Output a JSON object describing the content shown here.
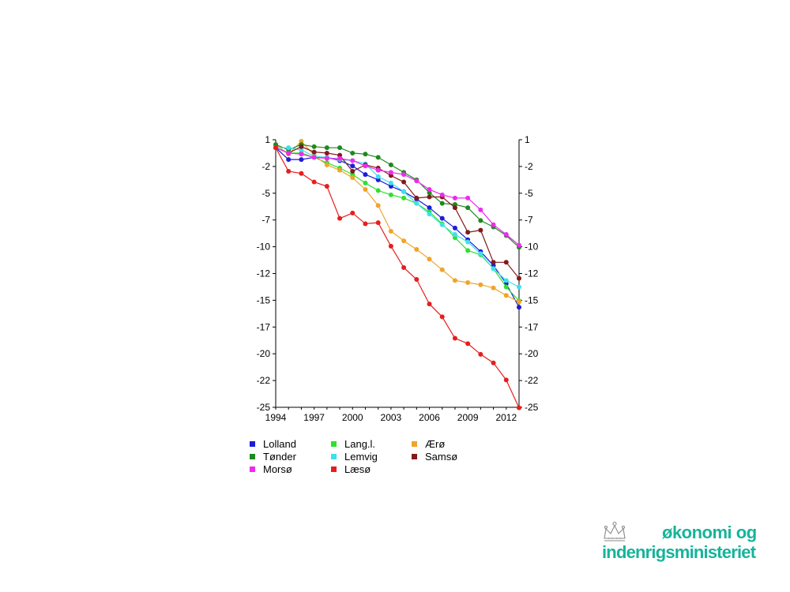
{
  "chart_data": {
    "type": "line",
    "title": "",
    "xlabel": "",
    "ylabel": "",
    "x": [
      1994,
      1995,
      1996,
      1997,
      1998,
      1999,
      2000,
      2001,
      2002,
      2003,
      2004,
      2005,
      2006,
      2007,
      2008,
      2009,
      2010,
      2011,
      2012,
      2013
    ],
    "x_ticks": [
      "1994",
      "1997",
      "2000",
      "2003",
      "2006",
      "2009",
      "2012"
    ],
    "y_ticks": [
      "1",
      "-2",
      "-5",
      "-7",
      "-10",
      "-12",
      "-15",
      "-17",
      "-20",
      "-22",
      "-25"
    ],
    "y_tick_values": [
      0.75,
      -1.75,
      -4.25,
      -6.75,
      -9.25,
      -11.75,
      -14.25,
      -16.75,
      -19.25,
      -21.75,
      -24.25
    ],
    "xlim": [
      1994,
      2013
    ],
    "ylim": [
      -24.25,
      0.75
    ],
    "grid": false,
    "legend_position": "bottom",
    "series": [
      {
        "name": "Lolland",
        "color": "#1c1cd9",
        "values": [
          0,
          -1.1,
          -1.1,
          -0.9,
          -0.9,
          -1.2,
          -1.7,
          -2.5,
          -3.0,
          -3.6,
          -4.1,
          -4.8,
          -5.6,
          -6.6,
          -7.5,
          -8.6,
          -9.7,
          -11.0,
          -12.7,
          -14.9
        ]
      },
      {
        "name": "Lang.l.",
        "color": "#2fe02f",
        "values": [
          0,
          -0.5,
          -0.5,
          -0.9,
          -1.4,
          -1.9,
          -2.5,
          -3.3,
          -4.0,
          -4.4,
          -4.7,
          -5.2,
          -6.0,
          -7.1,
          -8.4,
          -9.6,
          -10.0,
          -11.3,
          -13.0,
          -14.3
        ]
      },
      {
        "name": "Ærø",
        "color": "#f0a42a",
        "values": [
          0.3,
          -0.6,
          0.6,
          -0.7,
          -1.6,
          -2.1,
          -2.8,
          -3.9,
          -5.4,
          -7.8,
          -8.7,
          -9.5,
          -10.4,
          -11.4,
          -12.4,
          -12.6,
          -12.8,
          -13.1,
          -13.8,
          -14.4
        ]
      },
      {
        "name": "Tønder",
        "color": "#1e8a1e",
        "values": [
          0.3,
          -0.2,
          0.3,
          0.1,
          0.0,
          0.0,
          -0.5,
          -0.6,
          -0.9,
          -1.6,
          -2.3,
          -3.0,
          -4.2,
          -5.2,
          -5.3,
          -5.6,
          -6.8,
          -7.4,
          -8.2,
          -9.3
        ]
      },
      {
        "name": "Lemvig",
        "color": "#3ee0ec",
        "values": [
          0,
          0,
          -0.2,
          -0.8,
          -0.9,
          -1.1,
          -1.2,
          -1.5,
          -2.7,
          -3.3,
          -4.1,
          -5.2,
          -6.2,
          -7.2,
          -8.1,
          -8.8,
          -9.9,
          -11.3,
          -12.4,
          -13.0
        ]
      },
      {
        "name": "Samsø",
        "color": "#821a1a",
        "values": [
          0,
          -0.5,
          0.1,
          -0.4,
          -0.5,
          -0.7,
          -2.2,
          -1.6,
          -1.9,
          -2.6,
          -3.2,
          -4.7,
          -4.6,
          -4.6,
          -5.6,
          -7.9,
          -7.7,
          -10.7,
          -10.7,
          -12.2
        ]
      },
      {
        "name": "Morsø",
        "color": "#ee2bee",
        "values": [
          0,
          -0.5,
          -0.6,
          -0.9,
          -1.0,
          -1.0,
          -1.2,
          -1.7,
          -2.1,
          -2.3,
          -2.5,
          -3.1,
          -3.9,
          -4.4,
          -4.7,
          -4.7,
          -5.8,
          -7.2,
          -8.1,
          -9.1
        ]
      },
      {
        "name": "Læsø",
        "color": "#e61e1e",
        "values": [
          0,
          -2.2,
          -2.4,
          -3.2,
          -3.6,
          -6.6,
          -6.1,
          -7.1,
          -7.0,
          -9.2,
          -11.2,
          -12.3,
          -14.6,
          -15.8,
          -17.8,
          -18.3,
          -19.3,
          -20.1,
          -21.7,
          -24.3
        ]
      }
    ]
  },
  "legend_order": [
    0,
    3,
    6,
    1,
    4,
    7,
    2,
    5
  ],
  "logo": {
    "line1": "økonomi og",
    "line2": "indenrigsministeriet",
    "crown_icon": "crown-icon",
    "color": "#16b49a"
  }
}
